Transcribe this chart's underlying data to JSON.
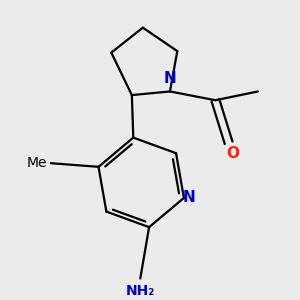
{
  "background_color": "#ebebeb",
  "atom_colors": {
    "C": "#000000",
    "N": "#0000cc",
    "O": "#ff2200",
    "H": "#000000"
  },
  "figsize": [
    3.0,
    3.0
  ],
  "dpi": 100,
  "bond_lw": 1.6,
  "font_size": 11
}
